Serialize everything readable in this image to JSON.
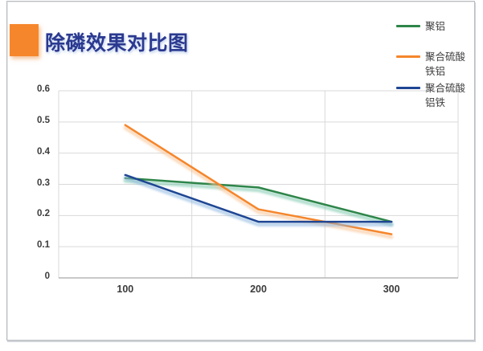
{
  "frame": {
    "border_color": "#b9bdc1"
  },
  "title": {
    "text": "除磷效果对比图",
    "color": "#2B3990",
    "accent_square_color": "#F6862B"
  },
  "chart_data": {
    "type": "line",
    "title": "除磷效果对比图",
    "categories": [
      "100",
      "200",
      "300"
    ],
    "series": [
      {
        "name": "聚铝",
        "color": "#2E8549",
        "glow": "#7FC9AE",
        "values": [
          0.32,
          0.29,
          0.18
        ]
      },
      {
        "name": "聚合硫酸铁铝",
        "color": "#F5862C",
        "glow": "#F8C495",
        "values": [
          0.49,
          0.22,
          0.14
        ]
      },
      {
        "name": "聚合硫酸铝铁",
        "color": "#1F4693",
        "glow": "#8FB8E0",
        "values": [
          0.33,
          0.18,
          0.18
        ]
      }
    ],
    "ylim": [
      0,
      0.6
    ],
    "yticks": [
      "0",
      "0.1",
      "0.2",
      "0.3",
      "0.4",
      "0.5",
      "0.6"
    ],
    "grid": true,
    "legend_position": "top-right",
    "axis_text_color": "#3b3b3b",
    "gridline_color": "#D9D9D9",
    "axis_line_color": "#A9A9A9"
  }
}
